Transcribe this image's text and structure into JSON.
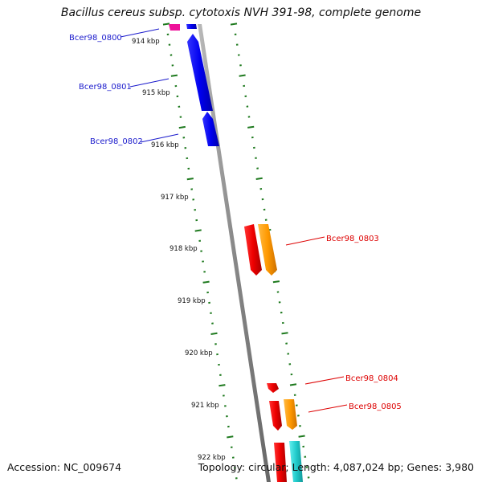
{
  "title": "Bacillus cereus subsp. cytotoxis NVH 391-98, complete genome",
  "footer": {
    "accession": "Accession: NC_009674",
    "summary": "Topology: circular; Length: 4,087,024 bp; Genes: 3,980"
  },
  "ticks": [
    "914 kbp",
    "915 kbp",
    "916 kbp",
    "917 kbp",
    "918 kbp",
    "919 kbp",
    "920 kbp",
    "921 kbp",
    "922 kbp"
  ],
  "genes": [
    {
      "label": "Bcer98_0800",
      "color": "#1a1acc"
    },
    {
      "label": "Bcer98_0801",
      "color": "#1a1acc"
    },
    {
      "label": "Bcer98_0802",
      "color": "#1a1acc"
    },
    {
      "label": "Bcer98_0803",
      "color": "#dd0000"
    },
    {
      "label": "Bcer98_0804",
      "color": "#dd0000"
    },
    {
      "label": "Bcer98_0805",
      "color": "#dd0000"
    }
  ],
  "colors": {
    "backbone": "#888888",
    "ticks": "#1f7a1f",
    "forward_cds": "#0000ee",
    "reverse_cds": "#ee0000",
    "orange_cds": "#ff9900",
    "cyan_cds": "#22cccc",
    "magenta_cds": "#ee1199"
  }
}
